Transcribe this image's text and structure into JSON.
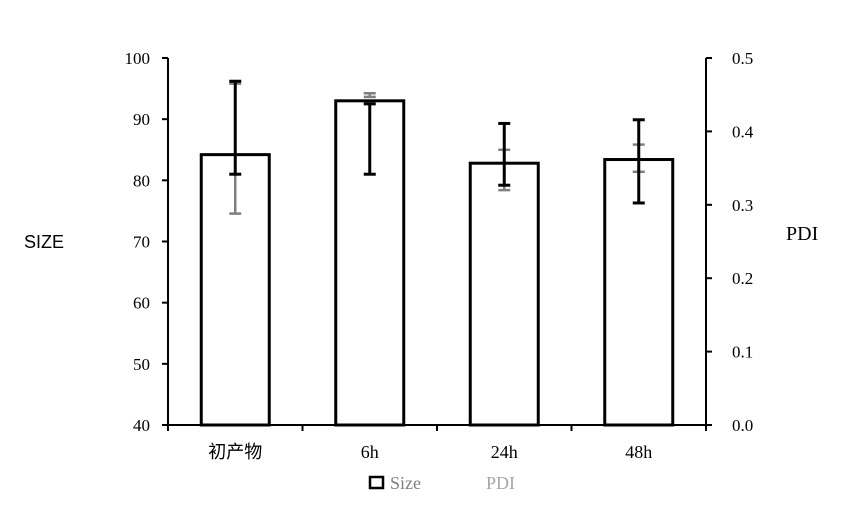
{
  "chart_data": {
    "type": "bar",
    "categories": [
      "初产物",
      "6h",
      "24h",
      "48h"
    ],
    "series": [
      {
        "name": "Size",
        "axis": "left",
        "values": [
          84.2,
          93.0,
          82.8,
          83.4
        ],
        "error_low": [
          81.0,
          81.0,
          79.2,
          76.3
        ],
        "error_high": [
          96.2,
          92.5,
          89.3,
          89.9
        ],
        "color": "#000000"
      },
      {
        "name": "PDI",
        "axis": "right",
        "error_low": [
          0.288,
          0.447,
          0.32,
          0.345
        ],
        "error_high": [
          0.465,
          0.452,
          0.375,
          0.382
        ],
        "color": "#808080"
      }
    ],
    "ylabel": "SIZE",
    "ylim": [
      40,
      100
    ],
    "yticks": [
      "40",
      "50",
      "60",
      "70",
      "80",
      "90",
      "100"
    ],
    "y2label": "PDI",
    "y2lim": [
      0.0,
      0.5
    ],
    "y2ticks": [
      "0.0",
      "0.1",
      "0.2",
      "0.3",
      "0.4",
      "0.5"
    ],
    "legend": {
      "position": "bottom",
      "entries": [
        "Size",
        "PDI"
      ]
    },
    "grid": false
  }
}
